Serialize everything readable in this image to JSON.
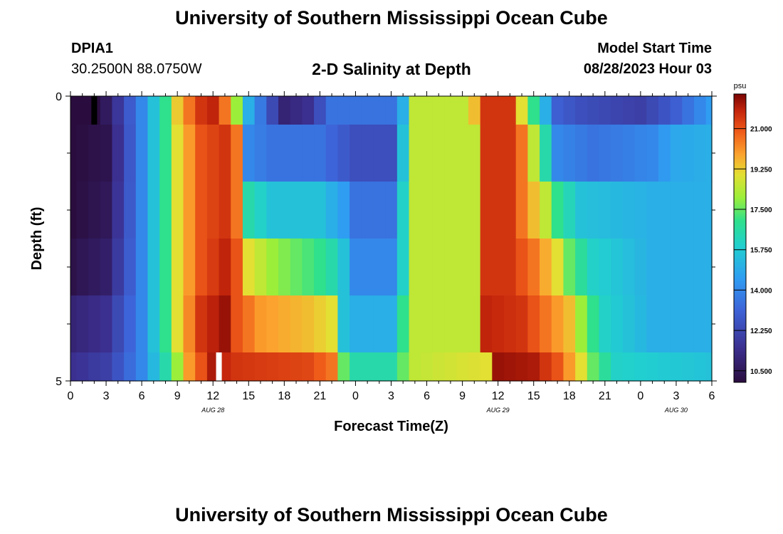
{
  "header": {
    "title": "University of Southern Mississippi Ocean Cube",
    "station": "DPIA1",
    "coordinates": "30.2500N  88.0750W",
    "plot_title": "2-D Salinity at Depth",
    "start_label": "Model Start Time",
    "start_value": "08/28/2023 Hour 03"
  },
  "footer": {
    "title": "University of Southern Mississippi Ocean Cube"
  },
  "chart_data": {
    "type": "heatmap",
    "title": "2-D Salinity at Depth",
    "xlabel": "Forecast Time(Z)",
    "ylabel": "Depth (ft)",
    "colorbar_label": "psu",
    "colorbar_ticks": [
      "10.500",
      "12.250",
      "14.000",
      "15.750",
      "17.500",
      "19.250",
      "21.000"
    ],
    "colorbar_range": [
      10.0,
      22.5
    ],
    "x_start_hour": 0,
    "x_step_hours": 1,
    "xlim": [
      0,
      54
    ],
    "x_tick_labels": [
      "0",
      "3",
      "6",
      "9",
      "12",
      "15",
      "18",
      "21",
      "0",
      "3",
      "6",
      "9",
      "12",
      "15",
      "18",
      "21",
      "0",
      "3",
      "6"
    ],
    "date_labels": [
      {
        "label": "AUG 28",
        "x": 12
      },
      {
        "label": "AUG 29",
        "x": 36
      },
      {
        "label": "AUG 30",
        "x": 51
      }
    ],
    "y_tick_labels": [
      "0",
      "5"
    ],
    "ylim": [
      0,
      5
    ],
    "depth_rows": [
      {
        "depth_range": [
          0,
          0.5
        ],
        "keypoints": [
          [
            0,
            10.0
          ],
          [
            2,
            10.0
          ],
          [
            3,
            10.6
          ],
          [
            6,
            14.0
          ],
          [
            8,
            17.0
          ],
          [
            9,
            19.3
          ],
          [
            10,
            20.5
          ],
          [
            11,
            21.5
          ],
          [
            12,
            21.8
          ],
          [
            13,
            20.5
          ],
          [
            14,
            18.0
          ],
          [
            15,
            15.0
          ],
          [
            18,
            11.0
          ],
          [
            20,
            11.5
          ],
          [
            22,
            13.5
          ],
          [
            24,
            13.5
          ],
          [
            27,
            13.5
          ],
          [
            28,
            15.0
          ],
          [
            29,
            18.5
          ],
          [
            33,
            18.5
          ],
          [
            34,
            19.5
          ],
          [
            35,
            21.5
          ],
          [
            37,
            21.5
          ],
          [
            38,
            19.0
          ],
          [
            39,
            17.0
          ],
          [
            41,
            13.0
          ],
          [
            43,
            12.5
          ],
          [
            48,
            12.0
          ],
          [
            51,
            13.0
          ],
          [
            54,
            14.5
          ]
        ]
      },
      {
        "depth_range": [
          0.5,
          1.5
        ],
        "keypoints": [
          [
            0,
            10.0
          ],
          [
            3,
            10.3
          ],
          [
            6,
            14.0
          ],
          [
            8,
            17.0
          ],
          [
            9,
            19.0
          ],
          [
            11,
            21.0
          ],
          [
            13,
            21.5
          ],
          [
            14,
            20.5
          ],
          [
            14.5,
            18.0
          ],
          [
            15,
            14.0
          ],
          [
            17,
            13.5
          ],
          [
            21,
            13.5
          ],
          [
            24,
            12.5
          ],
          [
            27,
            12.5
          ],
          [
            28,
            15.5
          ],
          [
            29,
            18.5
          ],
          [
            34,
            18.5
          ],
          [
            35,
            21.5
          ],
          [
            37,
            21.5
          ],
          [
            38,
            20.5
          ],
          [
            39,
            18.5
          ],
          [
            40,
            16.5
          ],
          [
            41,
            14.0
          ],
          [
            44,
            13.5
          ],
          [
            49,
            14.0
          ],
          [
            51,
            14.8
          ],
          [
            54,
            15.0
          ]
        ]
      },
      {
        "depth_range": [
          1.5,
          2.5
        ],
        "keypoints": [
          [
            0,
            10.0
          ],
          [
            3,
            10.5
          ],
          [
            6,
            14.0
          ],
          [
            8,
            17.0
          ],
          [
            9,
            19.0
          ],
          [
            11,
            21.0
          ],
          [
            13,
            21.5
          ],
          [
            14,
            20.5
          ],
          [
            14.5,
            18.0
          ],
          [
            15,
            16.5
          ],
          [
            17,
            15.5
          ],
          [
            21,
            15.5
          ],
          [
            23,
            14.5
          ],
          [
            24,
            13.5
          ],
          [
            27,
            13.5
          ],
          [
            28,
            16.0
          ],
          [
            29,
            18.5
          ],
          [
            34,
            18.5
          ],
          [
            35,
            21.5
          ],
          [
            37,
            21.5
          ],
          [
            38,
            20.5
          ],
          [
            40,
            18.5
          ],
          [
            41,
            17.0
          ],
          [
            43,
            15.5
          ],
          [
            49,
            15.0
          ],
          [
            51,
            15.0
          ],
          [
            54,
            15.0
          ]
        ]
      },
      {
        "depth_range": [
          2.5,
          3.5
        ],
        "keypoints": [
          [
            0,
            10.2
          ],
          [
            3,
            10.8
          ],
          [
            6,
            14.0
          ],
          [
            8,
            17.0
          ],
          [
            9,
            19.0
          ],
          [
            11,
            21.0
          ],
          [
            13,
            21.8
          ],
          [
            14,
            21.0
          ],
          [
            15,
            19.0
          ],
          [
            17,
            18.0
          ],
          [
            21,
            17.0
          ],
          [
            22,
            16.5
          ],
          [
            23,
            15.5
          ],
          [
            24,
            14.0
          ],
          [
            27,
            14.0
          ],
          [
            28,
            16.0
          ],
          [
            29,
            18.5
          ],
          [
            34,
            18.5
          ],
          [
            35,
            21.5
          ],
          [
            37,
            21.5
          ],
          [
            39,
            20.5
          ],
          [
            41,
            19.0
          ],
          [
            42,
            17.5
          ],
          [
            44,
            16.0
          ],
          [
            49,
            15.0
          ],
          [
            54,
            15.0
          ]
        ]
      },
      {
        "depth_range": [
          3.5,
          4.5
        ],
        "keypoints": [
          [
            0,
            11.0
          ],
          [
            3,
            11.5
          ],
          [
            6,
            14.0
          ],
          [
            8,
            17.0
          ],
          [
            9,
            19.0
          ],
          [
            11,
            21.5
          ],
          [
            13,
            22.2
          ],
          [
            14,
            21.0
          ],
          [
            16,
            20.0
          ],
          [
            20,
            19.5
          ],
          [
            22,
            19.0
          ],
          [
            22.5,
            17.0
          ],
          [
            23,
            15.5
          ],
          [
            24,
            15.0
          ],
          [
            27,
            15.0
          ],
          [
            28,
            17.0
          ],
          [
            29,
            18.5
          ],
          [
            34,
            18.5
          ],
          [
            35,
            21.8
          ],
          [
            38,
            21.5
          ],
          [
            40,
            20.5
          ],
          [
            42,
            19.5
          ],
          [
            43,
            18.0
          ],
          [
            45,
            16.0
          ],
          [
            49,
            15.0
          ],
          [
            54,
            15.0
          ]
        ]
      },
      {
        "depth_range": [
          4.5,
          5
        ],
        "keypoints": [
          [
            0,
            11.5
          ],
          [
            3,
            12.0
          ],
          [
            6,
            14.0
          ],
          [
            8,
            16.5
          ],
          [
            9,
            18.0
          ],
          [
            10,
            20.0
          ],
          [
            12,
            22.0
          ],
          [
            14,
            21.5
          ],
          [
            20,
            21.2
          ],
          [
            22,
            20.5
          ],
          [
            22.5,
            19.0
          ],
          [
            23,
            17.5
          ],
          [
            24,
            16.5
          ],
          [
            27,
            16.5
          ],
          [
            28,
            17.5
          ],
          [
            29,
            18.5
          ],
          [
            35,
            19.0
          ],
          [
            36,
            22.2
          ],
          [
            39,
            22.0
          ],
          [
            41,
            21.0
          ],
          [
            43,
            19.0
          ],
          [
            44,
            17.5
          ],
          [
            46,
            16.0
          ],
          [
            54,
            15.5
          ]
        ]
      }
    ],
    "missing_cells": [
      {
        "x": 2,
        "depth_range": [
          0,
          0.5
        ],
        "color": "#000000"
      },
      {
        "x": 12.5,
        "depth_range": [
          4.5,
          5
        ],
        "color": "#ffffff"
      }
    ]
  }
}
